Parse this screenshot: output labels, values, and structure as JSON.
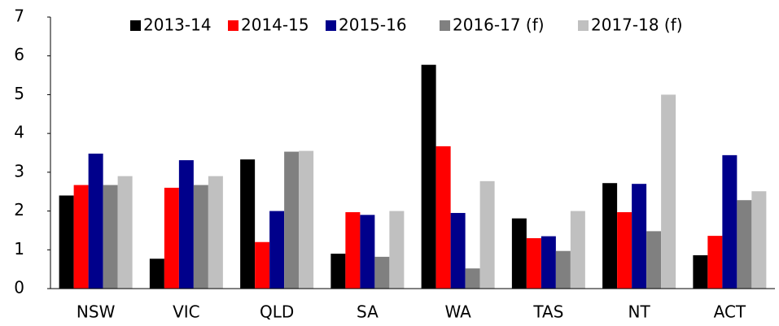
{
  "chart_data": {
    "type": "bar",
    "categories": [
      "NSW",
      "VIC",
      "QLD",
      "SA",
      "WA",
      "TAS",
      "NT",
      "ACT"
    ],
    "series": [
      {
        "name": "2013-14",
        "color": "#000000",
        "values": [
          2.4,
          0.77,
          3.33,
          0.9,
          5.77,
          1.81,
          2.72,
          0.86
        ]
      },
      {
        "name": "2014-15",
        "color": "#ff0000",
        "values": [
          2.67,
          2.6,
          1.2,
          1.97,
          3.67,
          1.3,
          1.97,
          1.36
        ]
      },
      {
        "name": "2015-16",
        "color": "#00008b",
        "values": [
          3.48,
          3.31,
          2.0,
          1.9,
          1.95,
          1.35,
          2.7,
          3.44
        ]
      },
      {
        "name": "2016-17 (f)",
        "color": "#808080",
        "values": [
          2.67,
          2.67,
          3.53,
          0.82,
          0.52,
          0.97,
          1.48,
          2.28
        ]
      },
      {
        "name": "2017-18 (f)",
        "color": "#c0c0c0",
        "values": [
          2.9,
          2.9,
          3.55,
          2.0,
          2.77,
          2.0,
          5.0,
          2.51
        ]
      }
    ],
    "ylim": [
      0,
      7
    ],
    "yticks": [
      0,
      1,
      2,
      3,
      4,
      5,
      6,
      7
    ],
    "grid": false,
    "legend": "top"
  }
}
